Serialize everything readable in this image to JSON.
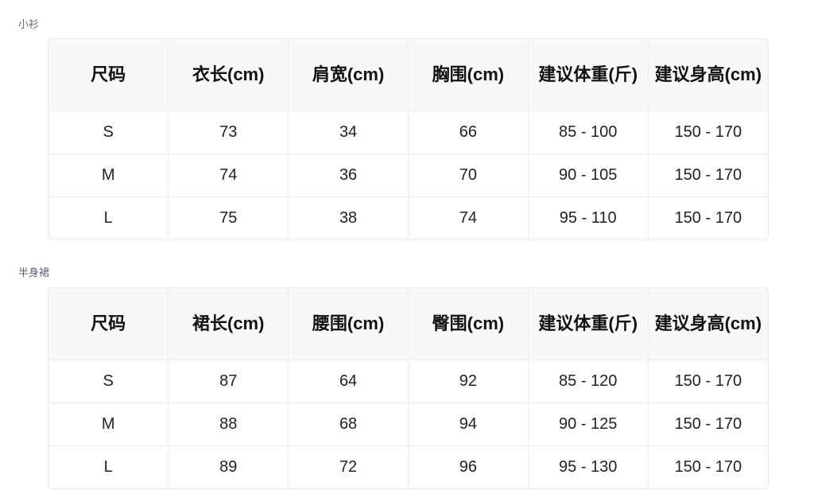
{
  "tables": [
    {
      "title": "小衫",
      "headers": [
        "尺码",
        "衣长(cm)",
        "肩宽(cm)",
        "胸围(cm)",
        "建议体重(斤)",
        "建议身高(cm)"
      ],
      "rows": [
        [
          "S",
          "73",
          "34",
          "66",
          "85 - 100",
          "150 - 170"
        ],
        [
          "M",
          "74",
          "36",
          "70",
          "90 - 105",
          "150 - 170"
        ],
        [
          "L",
          "75",
          "38",
          "74",
          "95 - 110",
          "150 - 170"
        ]
      ]
    },
    {
      "title": "半身裙",
      "headers": [
        "尺码",
        "裙长(cm)",
        "腰围(cm)",
        "臀围(cm)",
        "建议体重(斤)",
        "建议身高(cm)"
      ],
      "rows": [
        [
          "S",
          "87",
          "64",
          "92",
          "85 - 120",
          "150 - 170"
        ],
        [
          "M",
          "88",
          "68",
          "94",
          "90 - 125",
          "150 - 170"
        ],
        [
          "L",
          "89",
          "72",
          "96",
          "95 - 130",
          "150 - 170"
        ]
      ]
    }
  ]
}
